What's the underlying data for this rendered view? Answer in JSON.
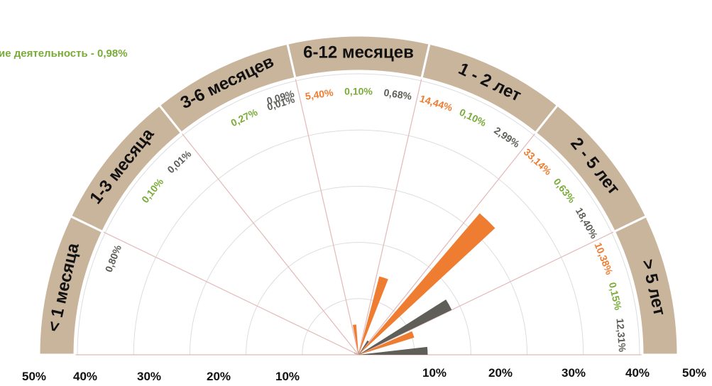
{
  "colors": {
    "band": "#c9b49c",
    "band_stroke": "#ffffff",
    "spoke": "#e3b8b8",
    "ring": "#dddddd",
    "orange": "#ee7d31",
    "green": "#7aab3a",
    "gray": "#5f5e59"
  },
  "cut_label": "ие деятельность - 0,98%",
  "chart_data": {
    "type": "polar-bar",
    "title": "",
    "radial_axis": {
      "min": 0,
      "max": 50,
      "unit": "%",
      "ticks": [
        10,
        20,
        30,
        40,
        50
      ],
      "grid": true
    },
    "tick_labels_left": [
      "50%",
      "40%",
      "30%",
      "20%",
      "10%"
    ],
    "tick_labels_right": [
      "10%",
      "20%",
      "30%",
      "40%",
      "50%"
    ],
    "series_colors": [
      "orange",
      "green",
      "gray"
    ],
    "categories": [
      {
        "label": "< 1 месяца",
        "values": [
          0.8
        ],
        "value_labels": [
          "0,80%"
        ]
      },
      {
        "label": "1-3 месяца",
        "values": [
          0.1,
          0.01
        ],
        "value_labels": [
          "0,10%",
          "0,01%"
        ]
      },
      {
        "label": "3-6 месяцев",
        "values": [
          0.27,
          0.01
        ],
        "value_labels": [
          "0,27%",
          "0,01%"
        ]
      },
      {
        "label": "6-12 месяцев",
        "values": [
          5.4,
          0.1,
          0.68
        ],
        "value_labels": [
          "5,40%",
          "0,10%",
          "0,68%"
        ]
      },
      {
        "label": "1 - 2 лет",
        "values": [
          14.44,
          0.1,
          2.99
        ],
        "value_labels": [
          "14,44%",
          "0,10%",
          "2,99%"
        ]
      },
      {
        "label": "2 - 5 лет",
        "values": [
          33.14,
          0.63,
          18.4
        ],
        "value_labels": [
          "33,14%",
          "0,63%",
          "18,40%"
        ]
      },
      {
        "label": "> 5 лет",
        "values": [
          10.38,
          0.15,
          12.31
        ],
        "value_labels": [
          "10,38%",
          "0,15%",
          "12,31%"
        ]
      }
    ],
    "previous_band_values": [
      0.09
    ],
    "previous_band_value_labels": [
      "0,09%"
    ]
  }
}
